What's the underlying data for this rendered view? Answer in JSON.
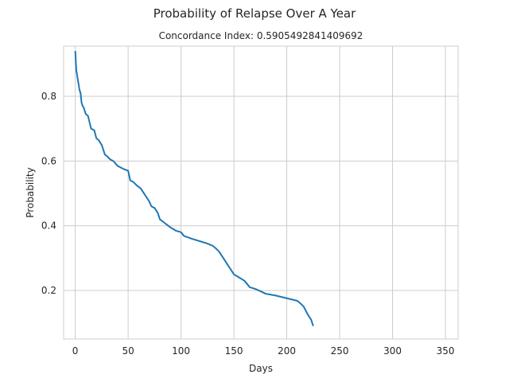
{
  "chart_data": {
    "type": "line",
    "suptitle": "Probability of Relapse Over A Year",
    "title": "Concordance Index: 0.5905492841409692",
    "xlabel": "Days",
    "ylabel": "Probability",
    "xlim": [
      -11,
      362
    ],
    "ylim": [
      0.05,
      0.955
    ],
    "xticks": [
      0,
      50,
      100,
      150,
      200,
      250,
      300,
      350
    ],
    "yticks": [
      0.2,
      0.4,
      0.6,
      0.8
    ],
    "grid": true,
    "legend": "none",
    "colors": {
      "line": "#1f77b4",
      "grid": "#cccccc",
      "text": "#262626"
    },
    "series": [
      {
        "x": [
          0,
          1,
          2,
          3,
          4,
          5,
          6,
          7,
          8,
          10,
          12,
          15,
          18,
          20,
          22,
          25,
          28,
          30,
          33,
          36,
          40,
          43,
          46,
          50,
          52,
          55,
          58,
          62,
          65,
          68,
          70,
          72,
          75,
          78,
          80,
          82,
          84,
          86,
          90,
          95,
          100,
          103,
          106,
          110,
          115,
          120,
          125,
          130,
          133,
          136,
          140,
          143,
          146,
          150,
          155,
          160,
          165,
          170,
          175,
          180,
          185,
          190,
          195,
          200,
          205,
          210,
          213,
          216,
          220,
          223,
          225
        ],
        "y": [
          0.94,
          0.88,
          0.86,
          0.84,
          0.82,
          0.81,
          0.78,
          0.77,
          0.765,
          0.745,
          0.74,
          0.7,
          0.695,
          0.67,
          0.665,
          0.65,
          0.62,
          0.615,
          0.605,
          0.6,
          0.585,
          0.58,
          0.575,
          0.57,
          0.54,
          0.535,
          0.525,
          0.515,
          0.5,
          0.485,
          0.475,
          0.46,
          0.455,
          0.44,
          0.42,
          0.415,
          0.41,
          0.405,
          0.395,
          0.385,
          0.38,
          0.368,
          0.365,
          0.36,
          0.355,
          0.35,
          0.345,
          0.338,
          0.33,
          0.32,
          0.3,
          0.285,
          0.27,
          0.25,
          0.24,
          0.23,
          0.21,
          0.205,
          0.198,
          0.19,
          0.187,
          0.184,
          0.18,
          0.176,
          0.172,
          0.168,
          0.16,
          0.15,
          0.125,
          0.11,
          0.09
        ]
      }
    ]
  }
}
